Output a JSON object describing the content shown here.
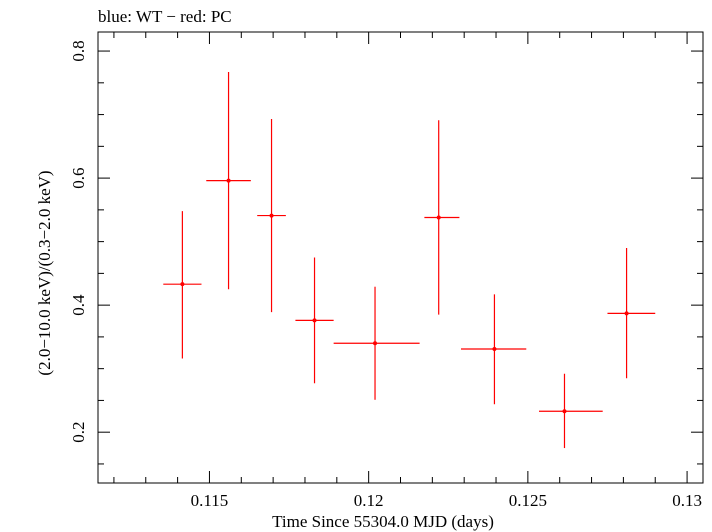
{
  "chart_data": {
    "type": "scatter",
    "title": "blue: WT − red: PC",
    "xlabel": "Time Since 55304.0 MJD (days)",
    "ylabel": "(2.0−10.0 keV)/(0.3−2.0 keV)",
    "xlim": [
      0.1115,
      0.1305
    ],
    "ylim": [
      0.12,
      0.83
    ],
    "x_ticks": [
      {
        "value": 0.115,
        "label": "0.115"
      },
      {
        "value": 0.12,
        "label": "0.12"
      },
      {
        "value": 0.125,
        "label": "0.125"
      },
      {
        "value": 0.13,
        "label": "0.13"
      }
    ],
    "y_ticks": [
      {
        "value": 0.2,
        "label": "0.2"
      },
      {
        "value": 0.4,
        "label": "0.4"
      },
      {
        "value": 0.6,
        "label": "0.6"
      },
      {
        "value": 0.8,
        "label": "0.8"
      }
    ],
    "series": [
      {
        "color": "#ff0000",
        "points": [
          {
            "x": 0.11415,
            "xlo": 0.11355,
            "xhi": 0.11475,
            "y": 0.433,
            "ylo": 0.316,
            "yhi": 0.548
          },
          {
            "x": 0.1156,
            "xlo": 0.1149,
            "xhi": 0.1163,
            "y": 0.596,
            "ylo": 0.425,
            "yhi": 0.767
          },
          {
            "x": 0.11695,
            "xlo": 0.1165,
            "xhi": 0.1174,
            "y": 0.541,
            "ylo": 0.389,
            "yhi": 0.693
          },
          {
            "x": 0.1183,
            "xlo": 0.1177,
            "xhi": 0.1189,
            "y": 0.376,
            "ylo": 0.277,
            "yhi": 0.475
          },
          {
            "x": 0.1202,
            "xlo": 0.1189,
            "xhi": 0.1216,
            "y": 0.34,
            "ylo": 0.251,
            "yhi": 0.429
          },
          {
            "x": 0.1222,
            "xlo": 0.12175,
            "xhi": 0.12285,
            "y": 0.538,
            "ylo": 0.385,
            "yhi": 0.691
          },
          {
            "x": 0.12395,
            "xlo": 0.1229,
            "xhi": 0.12495,
            "y": 0.331,
            "ylo": 0.244,
            "yhi": 0.417
          },
          {
            "x": 0.12615,
            "xlo": 0.12535,
            "xhi": 0.12735,
            "y": 0.233,
            "ylo": 0.175,
            "yhi": 0.292
          },
          {
            "x": 0.1281,
            "xlo": 0.1275,
            "xhi": 0.129,
            "y": 0.387,
            "ylo": 0.285,
            "yhi": 0.49
          }
        ]
      }
    ]
  }
}
